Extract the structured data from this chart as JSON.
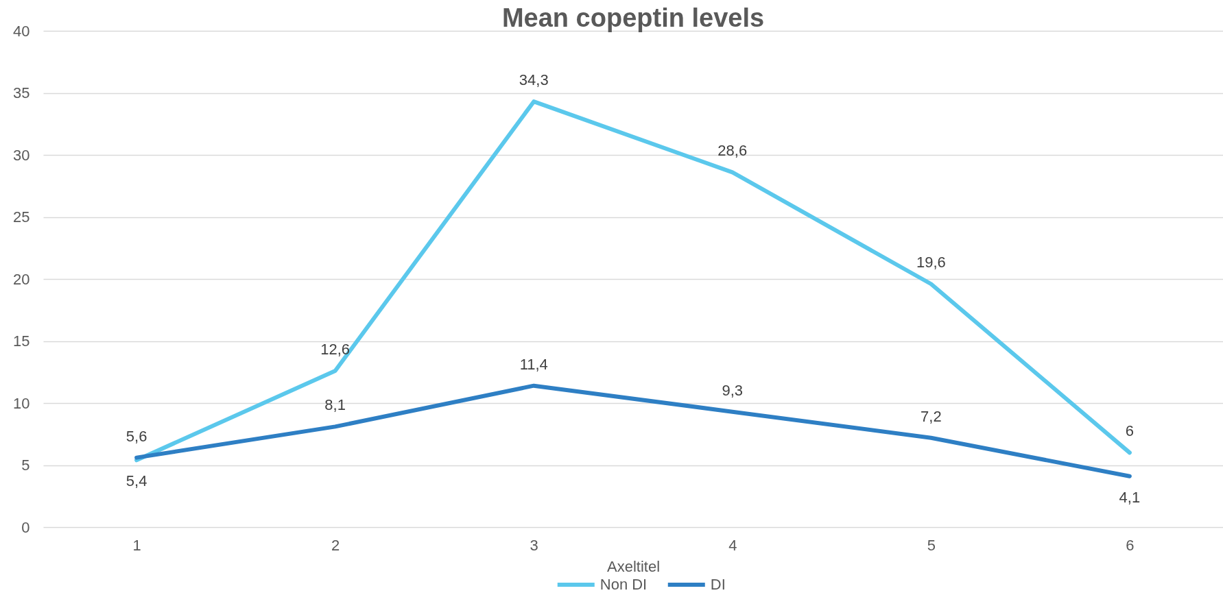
{
  "chart_data": {
    "type": "line",
    "title": "Mean copeptin levels",
    "xlabel": "Axeltitel",
    "categories": [
      "1",
      "2",
      "3",
      "4",
      "5",
      "6"
    ],
    "series": [
      {
        "name": "Non DI",
        "color": "#5bc8ec",
        "values": [
          5.4,
          12.6,
          34.3,
          28.6,
          19.6,
          6
        ],
        "value_labels": [
          "5,4",
          "12,6",
          "34,3",
          "28,6",
          "19,6",
          "6"
        ]
      },
      {
        "name": "DI",
        "color": "#2e7fc4",
        "values": [
          5.6,
          8.1,
          11.4,
          9.3,
          7.2,
          4.1
        ],
        "value_labels": [
          "5,6",
          "8,1",
          "11,4",
          "9,3",
          "7,2",
          "4,1"
        ]
      }
    ],
    "ylim": [
      0,
      40
    ],
    "yticks": [
      0,
      5,
      10,
      15,
      20,
      25,
      30,
      35,
      40
    ],
    "grid": "y",
    "legend": "bottom",
    "line_style": "solid"
  }
}
